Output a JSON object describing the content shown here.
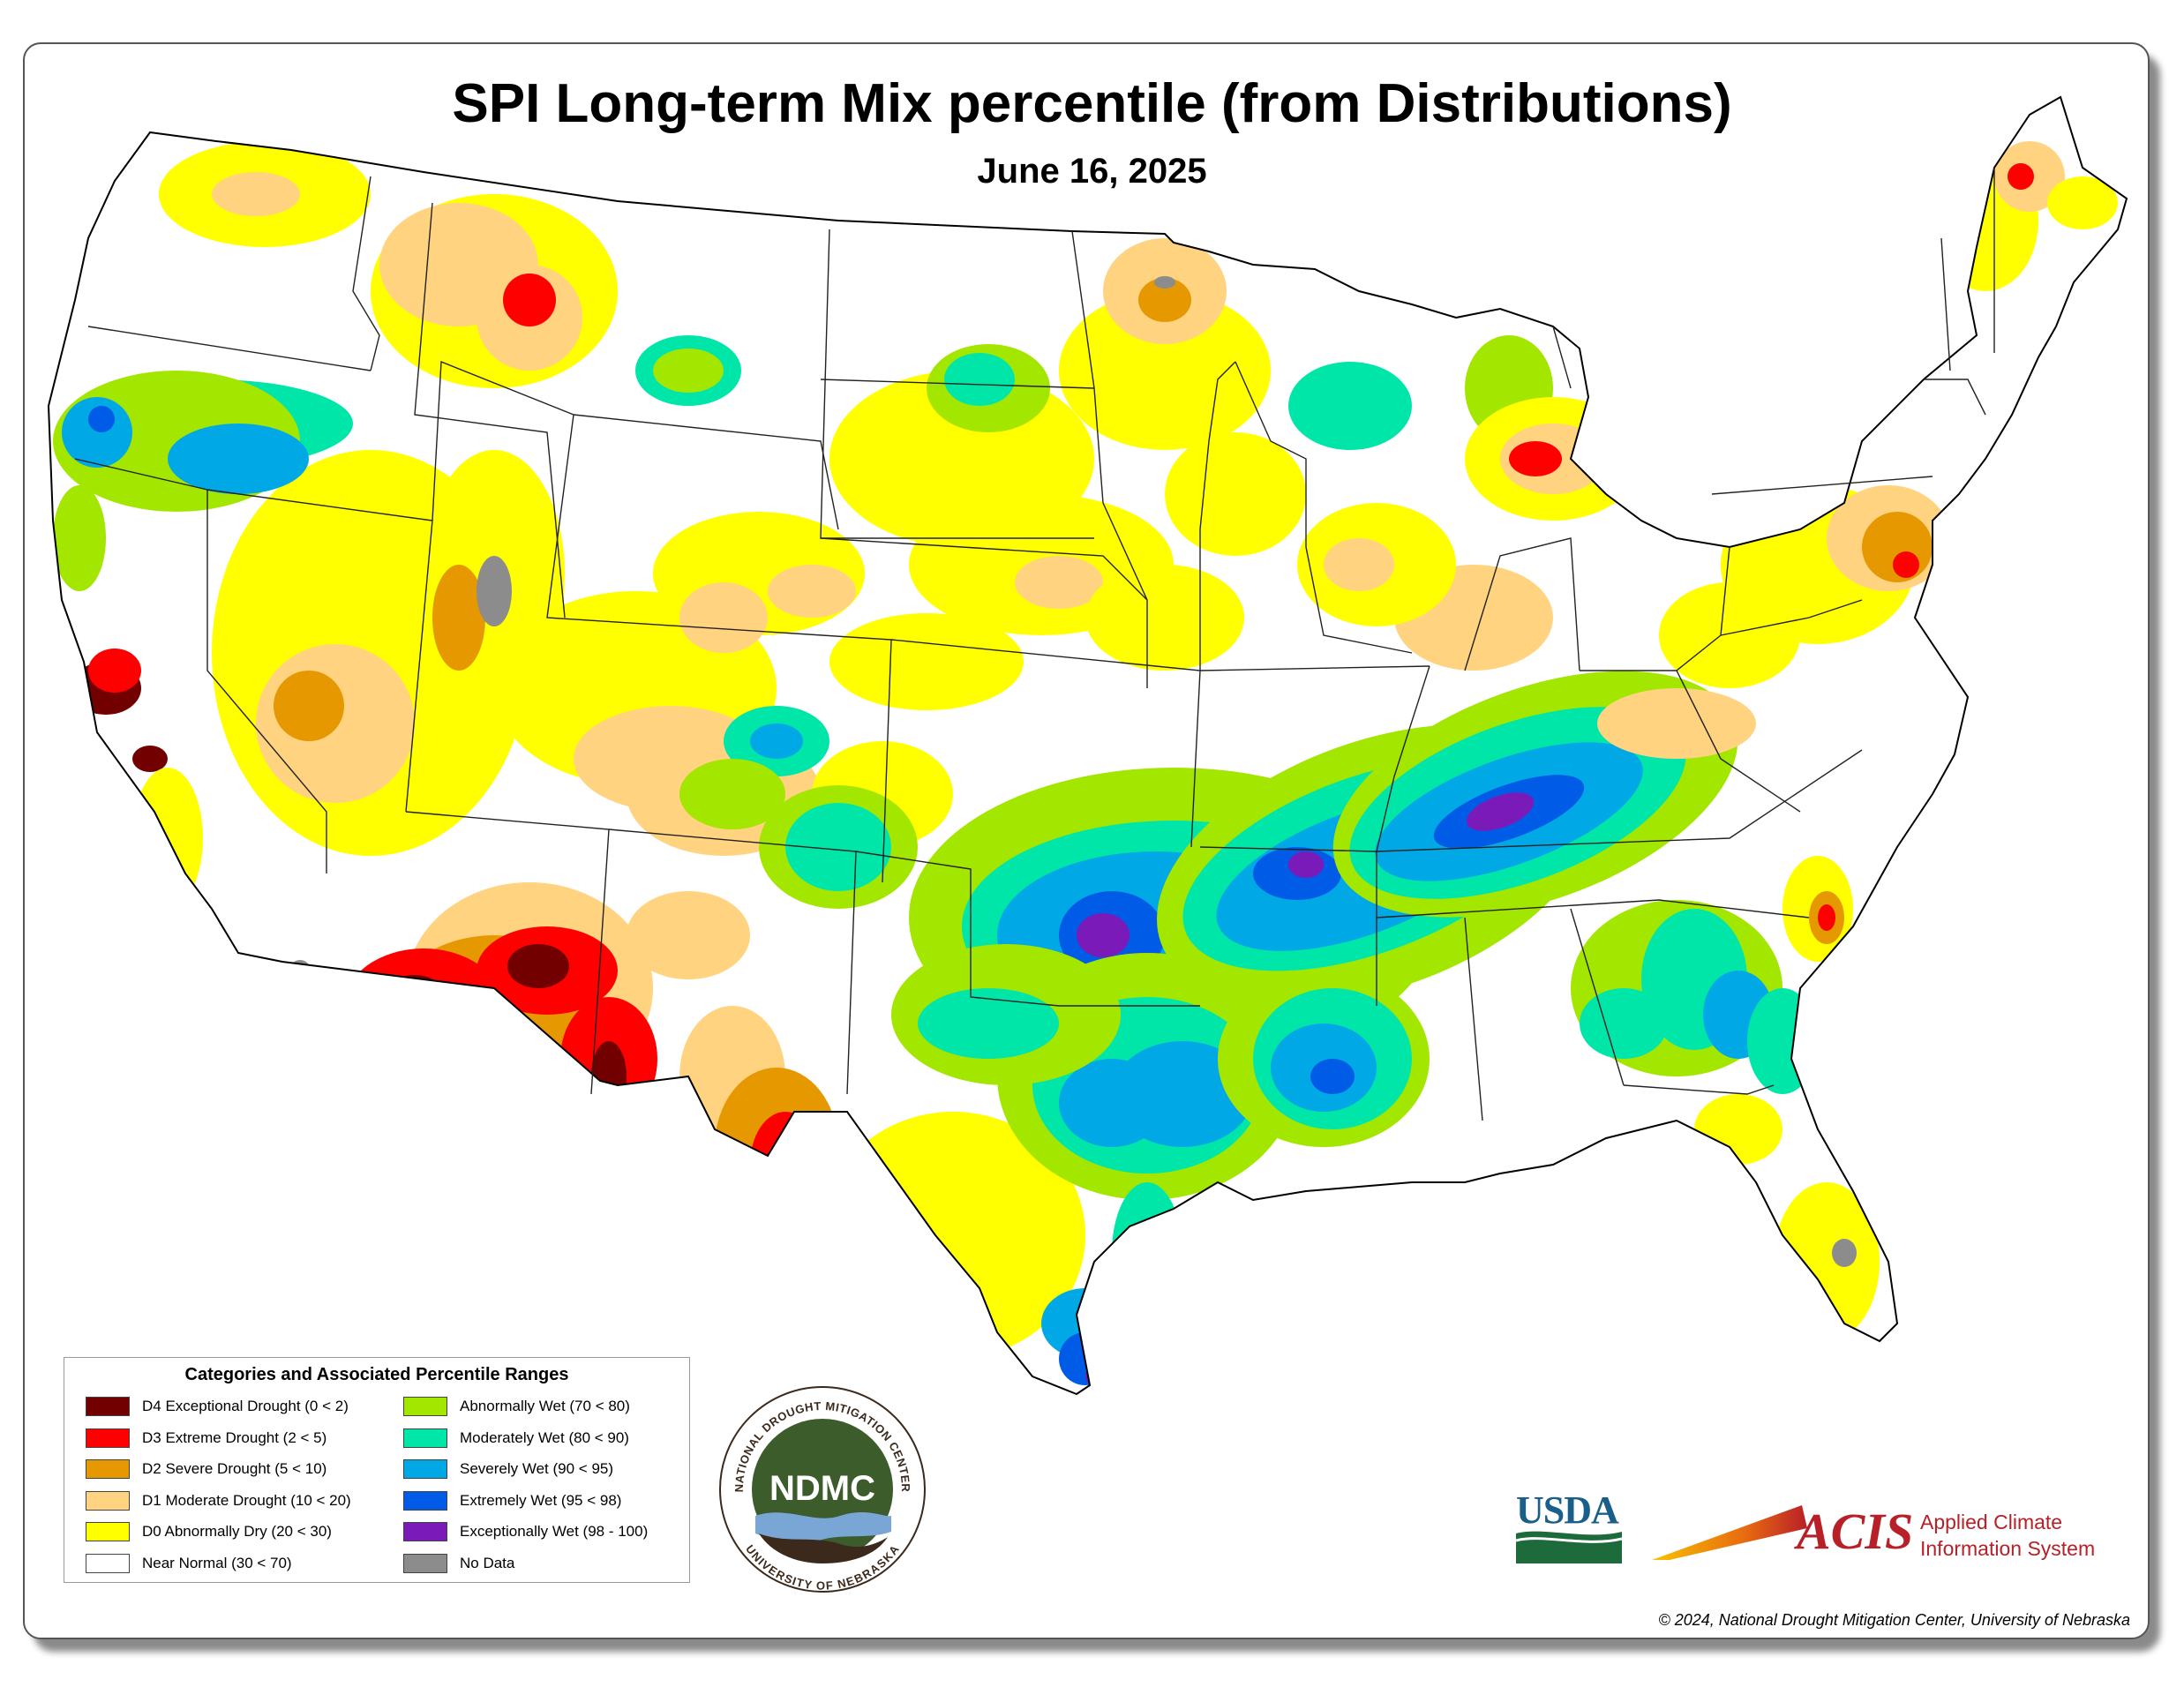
{
  "title": "SPI Long-term Mix percentile (from Distributions)",
  "subtitle": "June 16, 2025",
  "legend": {
    "title": "Categories and Associated Percentile Ranges",
    "left": [
      {
        "label": "D4 Exceptional Drought (0 < 2)",
        "color": "#730000"
      },
      {
        "label": "D3 Extreme Drought (2 < 5)",
        "color": "#ff0000"
      },
      {
        "label": "D2 Severe Drought (5 < 10)",
        "color": "#e69800"
      },
      {
        "label": "D1 Moderate Drought (10 < 20)",
        "color": "#ffd37f"
      },
      {
        "label": "D0 Abnormally Dry (20 < 30)",
        "color": "#ffff00"
      },
      {
        "label": "Near Normal (30 < 70)",
        "color": "#ffffff"
      }
    ],
    "right": [
      {
        "label": "Abnormally Wet (70 < 80)",
        "color": "#a3e600"
      },
      {
        "label": "Moderately Wet (80 < 90)",
        "color": "#00e6a9"
      },
      {
        "label": "Severely Wet (90 < 95)",
        "color": "#00a8e6"
      },
      {
        "label": "Extremely Wet (95 < 98)",
        "color": "#005ce6"
      },
      {
        "label": "Exceptionally Wet (98 - 100)",
        "color": "#7a1ab8"
      },
      {
        "label": "No Data",
        "color": "#8c8c8c"
      }
    ]
  },
  "logos": {
    "ndmc_abbrev": "NDMC",
    "ndmc_top_text": "NATIONAL DROUGHT MITIGATION CENTER",
    "ndmc_bottom_text": "UNIVERSITY OF NEBRASKA",
    "usda": "USDA",
    "acis": "ACIS",
    "acis_line1": "Applied Climate",
    "acis_line2": "Information System"
  },
  "copyright": "© 2024, National Drought Mitigation Center, University of Nebraska"
}
